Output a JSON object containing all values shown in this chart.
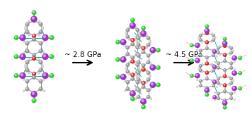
{
  "background_color": "#ffffff",
  "arrow1_text": "~ 2.8 GPa",
  "arrow2_text": "~ 4.5 GPa",
  "colors": {
    "purple": "#9B30C8",
    "green": "#22CC22",
    "red": "#CC2222",
    "gray": "#909090",
    "lgray": "#C0C0C0",
    "teal": "#00AAAA",
    "pink": "#FF9999",
    "white": "#ffffff"
  },
  "figsize": [
    3.56,
    1.89
  ],
  "dpi": 100
}
